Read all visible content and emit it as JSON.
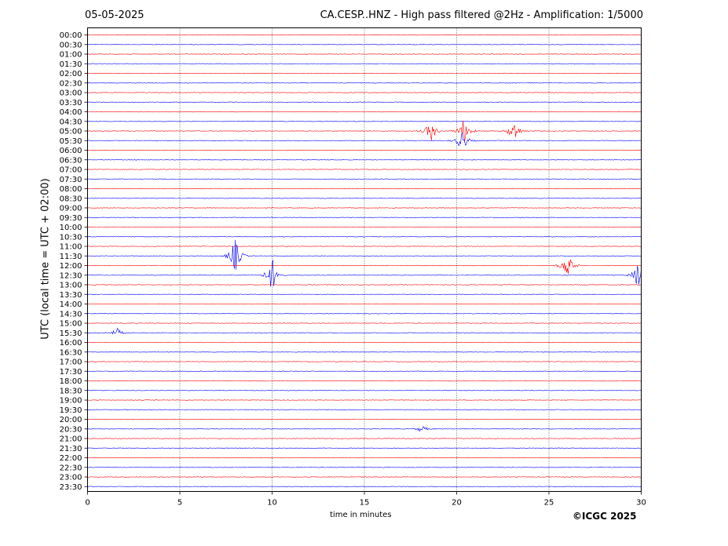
{
  "header": {
    "date": "05-05-2025",
    "title": "CA.CESP..HNZ - High pass filtered @2Hz - Amplification: 1/5000"
  },
  "footer": {
    "copyright": "©ICGC 2025"
  },
  "chart_data": {
    "type": "line",
    "title": "CA.CESP..HNZ - High pass filtered @2Hz - Amplification: 1/5000",
    "xlabel": "time in minutes",
    "ylabel": "UTC (local time = UTC + 02:00)",
    "xlim": [
      0,
      30
    ],
    "x_ticks": [
      0,
      5,
      10,
      15,
      20,
      25,
      30
    ],
    "x_gridlines": [
      5,
      10,
      15,
      20,
      25
    ],
    "grid": "vertical dotted",
    "row_colors": [
      "#ff0000",
      "#0000ff"
    ],
    "rows": [
      "00:00",
      "00:30",
      "01:00",
      "01:30",
      "02:00",
      "02:30",
      "03:00",
      "03:30",
      "04:00",
      "04:30",
      "05:00",
      "05:30",
      "06:00",
      "06:30",
      "07:00",
      "07:30",
      "08:00",
      "08:30",
      "09:00",
      "09:30",
      "10:00",
      "10:30",
      "11:00",
      "11:30",
      "12:00",
      "12:30",
      "13:00",
      "13:30",
      "14:00",
      "14:30",
      "15:00",
      "15:30",
      "16:00",
      "16:30",
      "17:00",
      "17:30",
      "18:00",
      "18:30",
      "19:00",
      "19:30",
      "20:00",
      "20:30",
      "21:00",
      "21:30",
      "22:00",
      "22:30",
      "23:00",
      "23:30"
    ],
    "events": [
      {
        "row": "05:00",
        "minute": 18.6,
        "amplitude": 2.5
      },
      {
        "row": "05:00",
        "minute": 20.4,
        "amplitude": 3.0
      },
      {
        "row": "05:00",
        "minute": 23.1,
        "amplitude": 2.6
      },
      {
        "row": "05:30",
        "minute": 20.3,
        "amplitude": 2.5
      },
      {
        "row": "11:30",
        "minute": 8.0,
        "amplitude": 4.0
      },
      {
        "row": "12:00",
        "minute": 26.0,
        "amplitude": 3.0
      },
      {
        "row": "12:30",
        "minute": 10.0,
        "amplitude": 4.0
      },
      {
        "row": "12:30",
        "minute": 29.9,
        "amplitude": 4.0
      },
      {
        "row": "15:30",
        "minute": 1.6,
        "amplitude": 1.0
      },
      {
        "row": "20:30",
        "minute": 18.1,
        "amplitude": 0.8
      }
    ]
  }
}
